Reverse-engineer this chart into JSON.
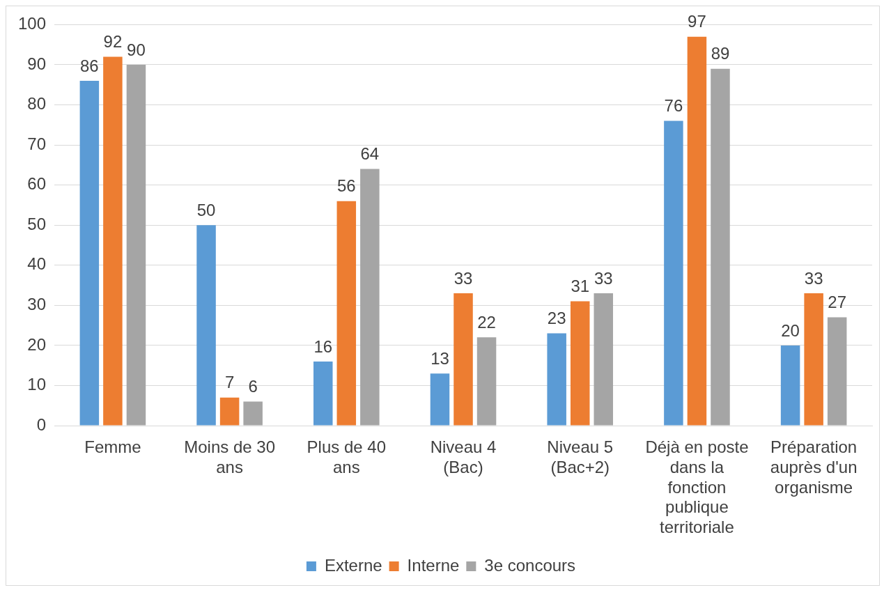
{
  "chart_data": {
    "type": "bar",
    "categories": [
      "Femme",
      "Moins de 30 ans",
      "Plus de 40 ans",
      "Niveau 4 (Bac)",
      "Niveau 5 (Bac+2)",
      "Déjà en poste dans la fonction publique territoriale",
      "Préparation auprès d'un organisme"
    ],
    "series": [
      {
        "name": "Externe",
        "color": "#5b9bd5",
        "values": [
          86,
          50,
          16,
          13,
          23,
          76,
          20
        ]
      },
      {
        "name": "Interne",
        "color": "#ed7d31",
        "values": [
          92,
          7,
          56,
          33,
          31,
          97,
          33
        ]
      },
      {
        "name": "3e concours",
        "color": "#a5a5a5",
        "values": [
          90,
          6,
          64,
          22,
          33,
          89,
          27
        ]
      }
    ],
    "ylim": [
      0,
      100
    ],
    "yticks": [
      0,
      10,
      20,
      30,
      40,
      50,
      60,
      70,
      80,
      90,
      100
    ],
    "grid": "y",
    "legend": "bottom",
    "data_labels": true
  }
}
